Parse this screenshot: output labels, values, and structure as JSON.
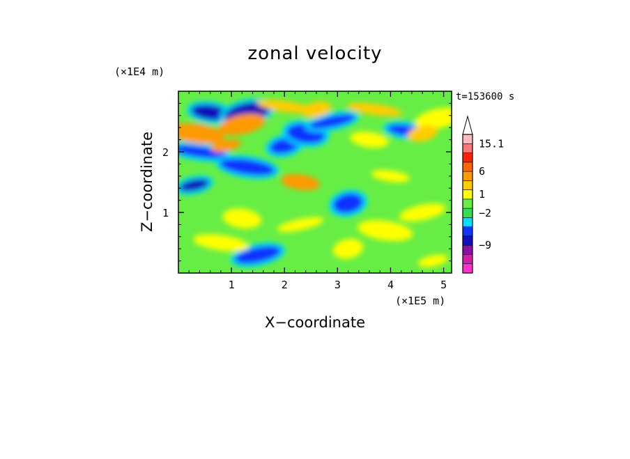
{
  "chart_data": {
    "type": "heatmap",
    "title": "zonal velocity",
    "xlabel": "X−coordinate",
    "ylabel": "Z−coordinate",
    "x_unit": "(×1E5 m)",
    "y_unit": "(×1E4 m)",
    "time_label": "t=153600 s",
    "xlim": [
      0,
      5.15
    ],
    "ylim": [
      0,
      3.0
    ],
    "x_ticks": [
      1,
      2,
      3,
      4,
      5
    ],
    "x_tick_labels": [
      "1",
      "2",
      "3",
      "4",
      "5"
    ],
    "y_ticks": [
      1,
      2
    ],
    "y_tick_labels": [
      "1",
      "2"
    ],
    "colorbar": {
      "colors": [
        "#ff33cc",
        "#cc22aa",
        "#8811aa",
        "#1111bb",
        "#1133ff",
        "#00ddff",
        "#33dd55",
        "#66ee44",
        "#ffff00",
        "#ffcc00",
        "#ff9900",
        "#ff6600",
        "#ff2200",
        "#ff7777",
        "#ffbbbb"
      ],
      "labels": [
        {
          "text": "15.1",
          "level": 14
        },
        {
          "text": "6",
          "level": 11
        },
        {
          "text": "1",
          "level": 8.5
        },
        {
          "text": "−2",
          "level": 6.5
        },
        {
          "text": "−9",
          "level": 3
        }
      ],
      "extend": "max"
    },
    "field_description_levels": {
      "background": 7,
      "features": [
        {
          "x": 0.3,
          "z": 1.45,
          "level": 3
        },
        {
          "x": 0.6,
          "z": 2.65,
          "level": 3
        },
        {
          "x": 1.3,
          "z": 2.65,
          "level": 3
        },
        {
          "x": 0.4,
          "z": 2.0,
          "level": 4
        },
        {
          "x": 2.0,
          "z": 2.1,
          "level": 4
        },
        {
          "x": 2.4,
          "z": 2.3,
          "level": 4
        },
        {
          "x": 2.9,
          "z": 2.5,
          "level": 4
        },
        {
          "x": 1.3,
          "z": 1.75,
          "level": 4
        },
        {
          "x": 3.2,
          "z": 1.15,
          "level": 4
        },
        {
          "x": 4.3,
          "z": 2.35,
          "level": 4
        },
        {
          "x": 1.5,
          "z": 0.3,
          "level": 4
        },
        {
          "x": 0.35,
          "z": 2.3,
          "level": 10
        },
        {
          "x": 0.9,
          "z": 2.1,
          "level": 10
        },
        {
          "x": 2.3,
          "z": 1.5,
          "level": 10
        },
        {
          "x": 1.2,
          "z": 2.45,
          "level": 10
        },
        {
          "x": 2.0,
          "z": 2.75,
          "level": 9
        },
        {
          "x": 2.6,
          "z": 2.7,
          "level": 9
        },
        {
          "x": 1.2,
          "z": 0.9,
          "level": 8
        },
        {
          "x": 2.3,
          "z": 0.8,
          "level": 8
        },
        {
          "x": 0.8,
          "z": 0.5,
          "level": 8
        },
        {
          "x": 3.2,
          "z": 0.4,
          "level": 8
        },
        {
          "x": 4.0,
          "z": 1.6,
          "level": 8
        },
        {
          "x": 4.6,
          "z": 1.0,
          "level": 8
        },
        {
          "x": 3.9,
          "z": 0.7,
          "level": 8
        },
        {
          "x": 4.8,
          "z": 0.2,
          "level": 8
        },
        {
          "x": 3.6,
          "z": 2.2,
          "level": 8
        },
        {
          "x": 4.9,
          "z": 2.55,
          "level": 8
        },
        {
          "x": 3.7,
          "z": 2.7,
          "level": 9
        },
        {
          "x": 4.6,
          "z": 2.3,
          "level": 9
        }
      ]
    }
  }
}
